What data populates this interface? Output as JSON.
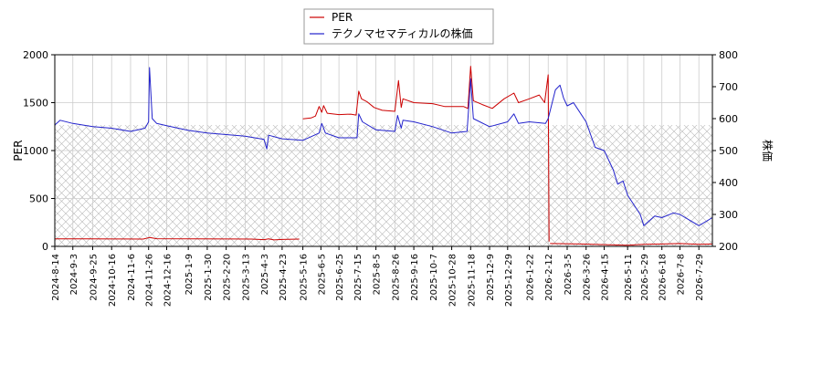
{
  "chart_data": {
    "type": "line",
    "legend": {
      "placement": "top-center",
      "entries": [
        "PER",
        "テクノマセマティカルの株価"
      ]
    },
    "y_left": {
      "label": "PER",
      "range": [
        0,
        2000
      ],
      "ticks": [
        "0",
        "500",
        "1000",
        "1500",
        "2000"
      ]
    },
    "y_right": {
      "label": "株価",
      "range": [
        200,
        800
      ],
      "ticks": [
        "200",
        "300",
        "400",
        "500",
        "600",
        "700",
        "800"
      ]
    },
    "x_range": [
      "2024-08-14",
      "2026-08-13"
    ],
    "x_ticks": [
      "2024-8-14",
      "2024-9-3",
      "2024-9-25",
      "2024-10-16",
      "2024-11-6",
      "2024-11-26",
      "2024-12-16",
      "2025-1-9",
      "2025-1-30",
      "2025-2-20",
      "2025-3-13",
      "2025-4-3",
      "2025-4-23",
      "2025-5-16",
      "2025-6-5",
      "2025-6-25",
      "2025-7-15",
      "2025-8-5",
      "2025-8-26",
      "2025-9-16",
      "2025-10-7",
      "2025-10-28",
      "2025-11-18",
      "2025-12-9",
      "2025-12-29",
      "2026-1-22",
      "2026-2-12",
      "2026-3-5",
      "2026-3-26",
      "2026-4-15",
      "2026-5-11",
      "2026-5-29",
      "2026-6-18",
      "2026-7-8",
      "2026-7-29"
    ],
    "grid": true,
    "hatched_region": {
      "x": [
        "2024-08-14",
        "2026-08-13"
      ],
      "y_right": [
        200,
        580
      ]
    },
    "series": [
      {
        "name": "PER",
        "axis": "left",
        "color": "#cc0000",
        "segments": [
          [
            [
              "2024-08-14",
              78
            ],
            [
              "2024-09-20",
              78
            ],
            [
              "2024-10-30",
              77
            ],
            [
              "2024-11-20",
              76
            ],
            [
              "2024-11-27",
              92
            ],
            [
              "2024-12-05",
              80
            ],
            [
              "2025-01-15",
              78
            ],
            [
              "2025-02-20",
              77
            ],
            [
              "2025-03-20",
              76
            ],
            [
              "2025-04-03",
              70
            ],
            [
              "2025-04-08",
              78
            ],
            [
              "2025-04-14",
              68
            ],
            [
              "2025-04-23",
              72
            ],
            [
              "2025-05-12",
              76
            ]
          ],
          [
            [
              "2025-05-16",
              1330
            ],
            [
              "2025-05-25",
              1340
            ],
            [
              "2025-05-30",
              1360
            ],
            [
              "2025-06-03",
              1460
            ],
            [
              "2025-06-06",
              1400
            ],
            [
              "2025-06-08",
              1470
            ],
            [
              "2025-06-12",
              1390
            ],
            [
              "2025-06-25",
              1375
            ],
            [
              "2025-07-08",
              1380
            ],
            [
              "2025-07-14",
              1370
            ],
            [
              "2025-07-17",
              1620
            ],
            [
              "2025-07-20",
              1540
            ],
            [
              "2025-07-26",
              1510
            ],
            [
              "2025-08-03",
              1450
            ],
            [
              "2025-08-12",
              1420
            ],
            [
              "2025-08-26",
              1410
            ],
            [
              "2025-08-30",
              1730
            ],
            [
              "2025-09-02",
              1450
            ],
            [
              "2025-09-04",
              1540
            ],
            [
              "2025-09-16",
              1500
            ],
            [
              "2025-10-07",
              1490
            ],
            [
              "2025-10-20",
              1460
            ],
            [
              "2025-11-10",
              1460
            ],
            [
              "2025-11-15",
              1440
            ],
            [
              "2025-11-18",
              1880
            ],
            [
              "2025-11-21",
              1520
            ],
            [
              "2025-12-01",
              1480
            ],
            [
              "2025-12-12",
              1440
            ],
            [
              "2025-12-25",
              1540
            ],
            [
              "2026-01-05",
              1600
            ],
            [
              "2026-01-10",
              1500
            ],
            [
              "2026-01-22",
              1540
            ],
            [
              "2026-02-02",
              1580
            ],
            [
              "2026-02-08",
              1500
            ],
            [
              "2026-02-12",
              1790
            ],
            [
              "2026-02-13",
              50
            ]
          ],
          [
            [
              "2026-02-14",
              30
            ],
            [
              "2026-03-20",
              25
            ],
            [
              "2026-04-15",
              18
            ],
            [
              "2026-05-11",
              12
            ],
            [
              "2026-05-29",
              22
            ],
            [
              "2026-06-18",
              25
            ],
            [
              "2026-07-08",
              30
            ],
            [
              "2026-07-29",
              22
            ],
            [
              "2026-08-13",
              25
            ]
          ]
        ]
      },
      {
        "name": "テクノマセマティカルの株価",
        "axis": "right",
        "color": "#2222cc",
        "points": [
          [
            "2024-08-14",
            580
          ],
          [
            "2024-08-20",
            595
          ],
          [
            "2024-09-03",
            585
          ],
          [
            "2024-09-25",
            575
          ],
          [
            "2024-10-16",
            570
          ],
          [
            "2024-11-06",
            560
          ],
          [
            "2024-11-22",
            570
          ],
          [
            "2024-11-26",
            590
          ],
          [
            "2024-11-27",
            760
          ],
          [
            "2024-11-30",
            600
          ],
          [
            "2024-12-05",
            585
          ],
          [
            "2024-12-16",
            578
          ],
          [
            "2025-01-09",
            563
          ],
          [
            "2025-01-30",
            555
          ],
          [
            "2025-02-20",
            550
          ],
          [
            "2025-03-13",
            545
          ],
          [
            "2025-04-03",
            535
          ],
          [
            "2025-04-06",
            505
          ],
          [
            "2025-04-08",
            548
          ],
          [
            "2025-04-23",
            537
          ],
          [
            "2025-05-16",
            532
          ],
          [
            "2025-06-03",
            555
          ],
          [
            "2025-06-06",
            585
          ],
          [
            "2025-06-10",
            555
          ],
          [
            "2025-06-25",
            540
          ],
          [
            "2025-07-15",
            540
          ],
          [
            "2025-07-17",
            615
          ],
          [
            "2025-07-21",
            590
          ],
          [
            "2025-08-05",
            565
          ],
          [
            "2025-08-26",
            560
          ],
          [
            "2025-08-29",
            610
          ],
          [
            "2025-09-02",
            570
          ],
          [
            "2025-09-04",
            595
          ],
          [
            "2025-09-16",
            590
          ],
          [
            "2025-10-07",
            575
          ],
          [
            "2025-10-28",
            555
          ],
          [
            "2025-11-14",
            560
          ],
          [
            "2025-11-18",
            725
          ],
          [
            "2025-11-21",
            600
          ],
          [
            "2025-12-09",
            575
          ],
          [
            "2025-12-29",
            590
          ],
          [
            "2026-01-05",
            615
          ],
          [
            "2026-01-10",
            585
          ],
          [
            "2026-01-22",
            590
          ],
          [
            "2026-02-09",
            585
          ],
          [
            "2026-02-12",
            600
          ],
          [
            "2026-02-20",
            690
          ],
          [
            "2026-02-25",
            705
          ],
          [
            "2026-03-01",
            665
          ],
          [
            "2026-03-05",
            640
          ],
          [
            "2026-03-12",
            650
          ],
          [
            "2026-03-26",
            590
          ],
          [
            "2026-04-05",
            510
          ],
          [
            "2026-04-15",
            500
          ],
          [
            "2026-04-25",
            440
          ],
          [
            "2026-04-30",
            395
          ],
          [
            "2026-05-06",
            405
          ],
          [
            "2026-05-11",
            360
          ],
          [
            "2026-05-25",
            300
          ],
          [
            "2026-05-29",
            265
          ],
          [
            "2026-06-10",
            295
          ],
          [
            "2026-06-18",
            290
          ],
          [
            "2026-07-01",
            305
          ],
          [
            "2026-07-08",
            300
          ],
          [
            "2026-07-29",
            265
          ],
          [
            "2026-08-13",
            290
          ]
        ]
      }
    ]
  }
}
